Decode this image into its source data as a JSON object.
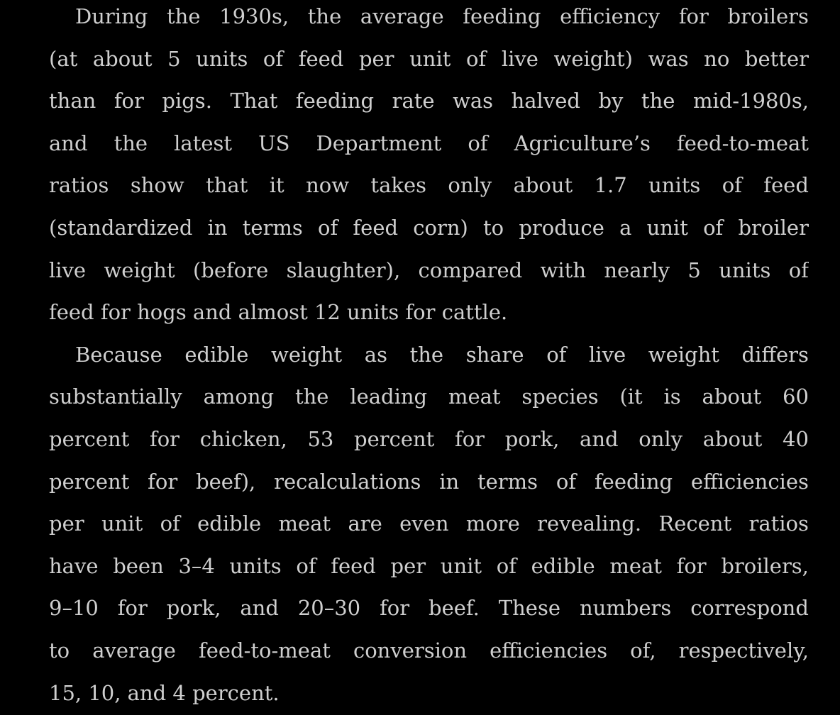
{
  "page": {
    "background": "#000000",
    "text_color": "#cfcfcf",
    "paragraphs": [
      {
        "lines": [
          "During the 1930s, the average feeding efficiency for broilers",
          "(at about 5 units of feed per unit of live weight) was no better",
          "than for pigs. That feeding rate was halved by the mid-1980s,",
          "and the latest US Department of Agriculture’s feed-to-meat",
          "ratios show that it now takes only about 1.7 units of feed",
          "(standardized in terms of feed corn) to produce a unit of broiler",
          "live weight (before slaughter), compared with nearly 5 units of",
          "feed for hogs and almost 12 units for cattle."
        ]
      },
      {
        "lines": [
          "Because edible weight as the share of live weight differs",
          "substantially among the leading meat species (it is about 60",
          "percent for chicken, 53 percent for pork, and only about 40",
          "percent for beef), recalculations in terms of feeding efficiencies",
          "per unit of edible meat are even more revealing. Recent ratios",
          "have been 3–4 units of feed per unit of edible meat for broilers,",
          "9–10 for pork, and 20–30 for beef. These numbers correspond",
          "to average feed-to-meat conversion efficiencies of, respectively,",
          "15, 10, and 4 percent."
        ]
      }
    ]
  }
}
